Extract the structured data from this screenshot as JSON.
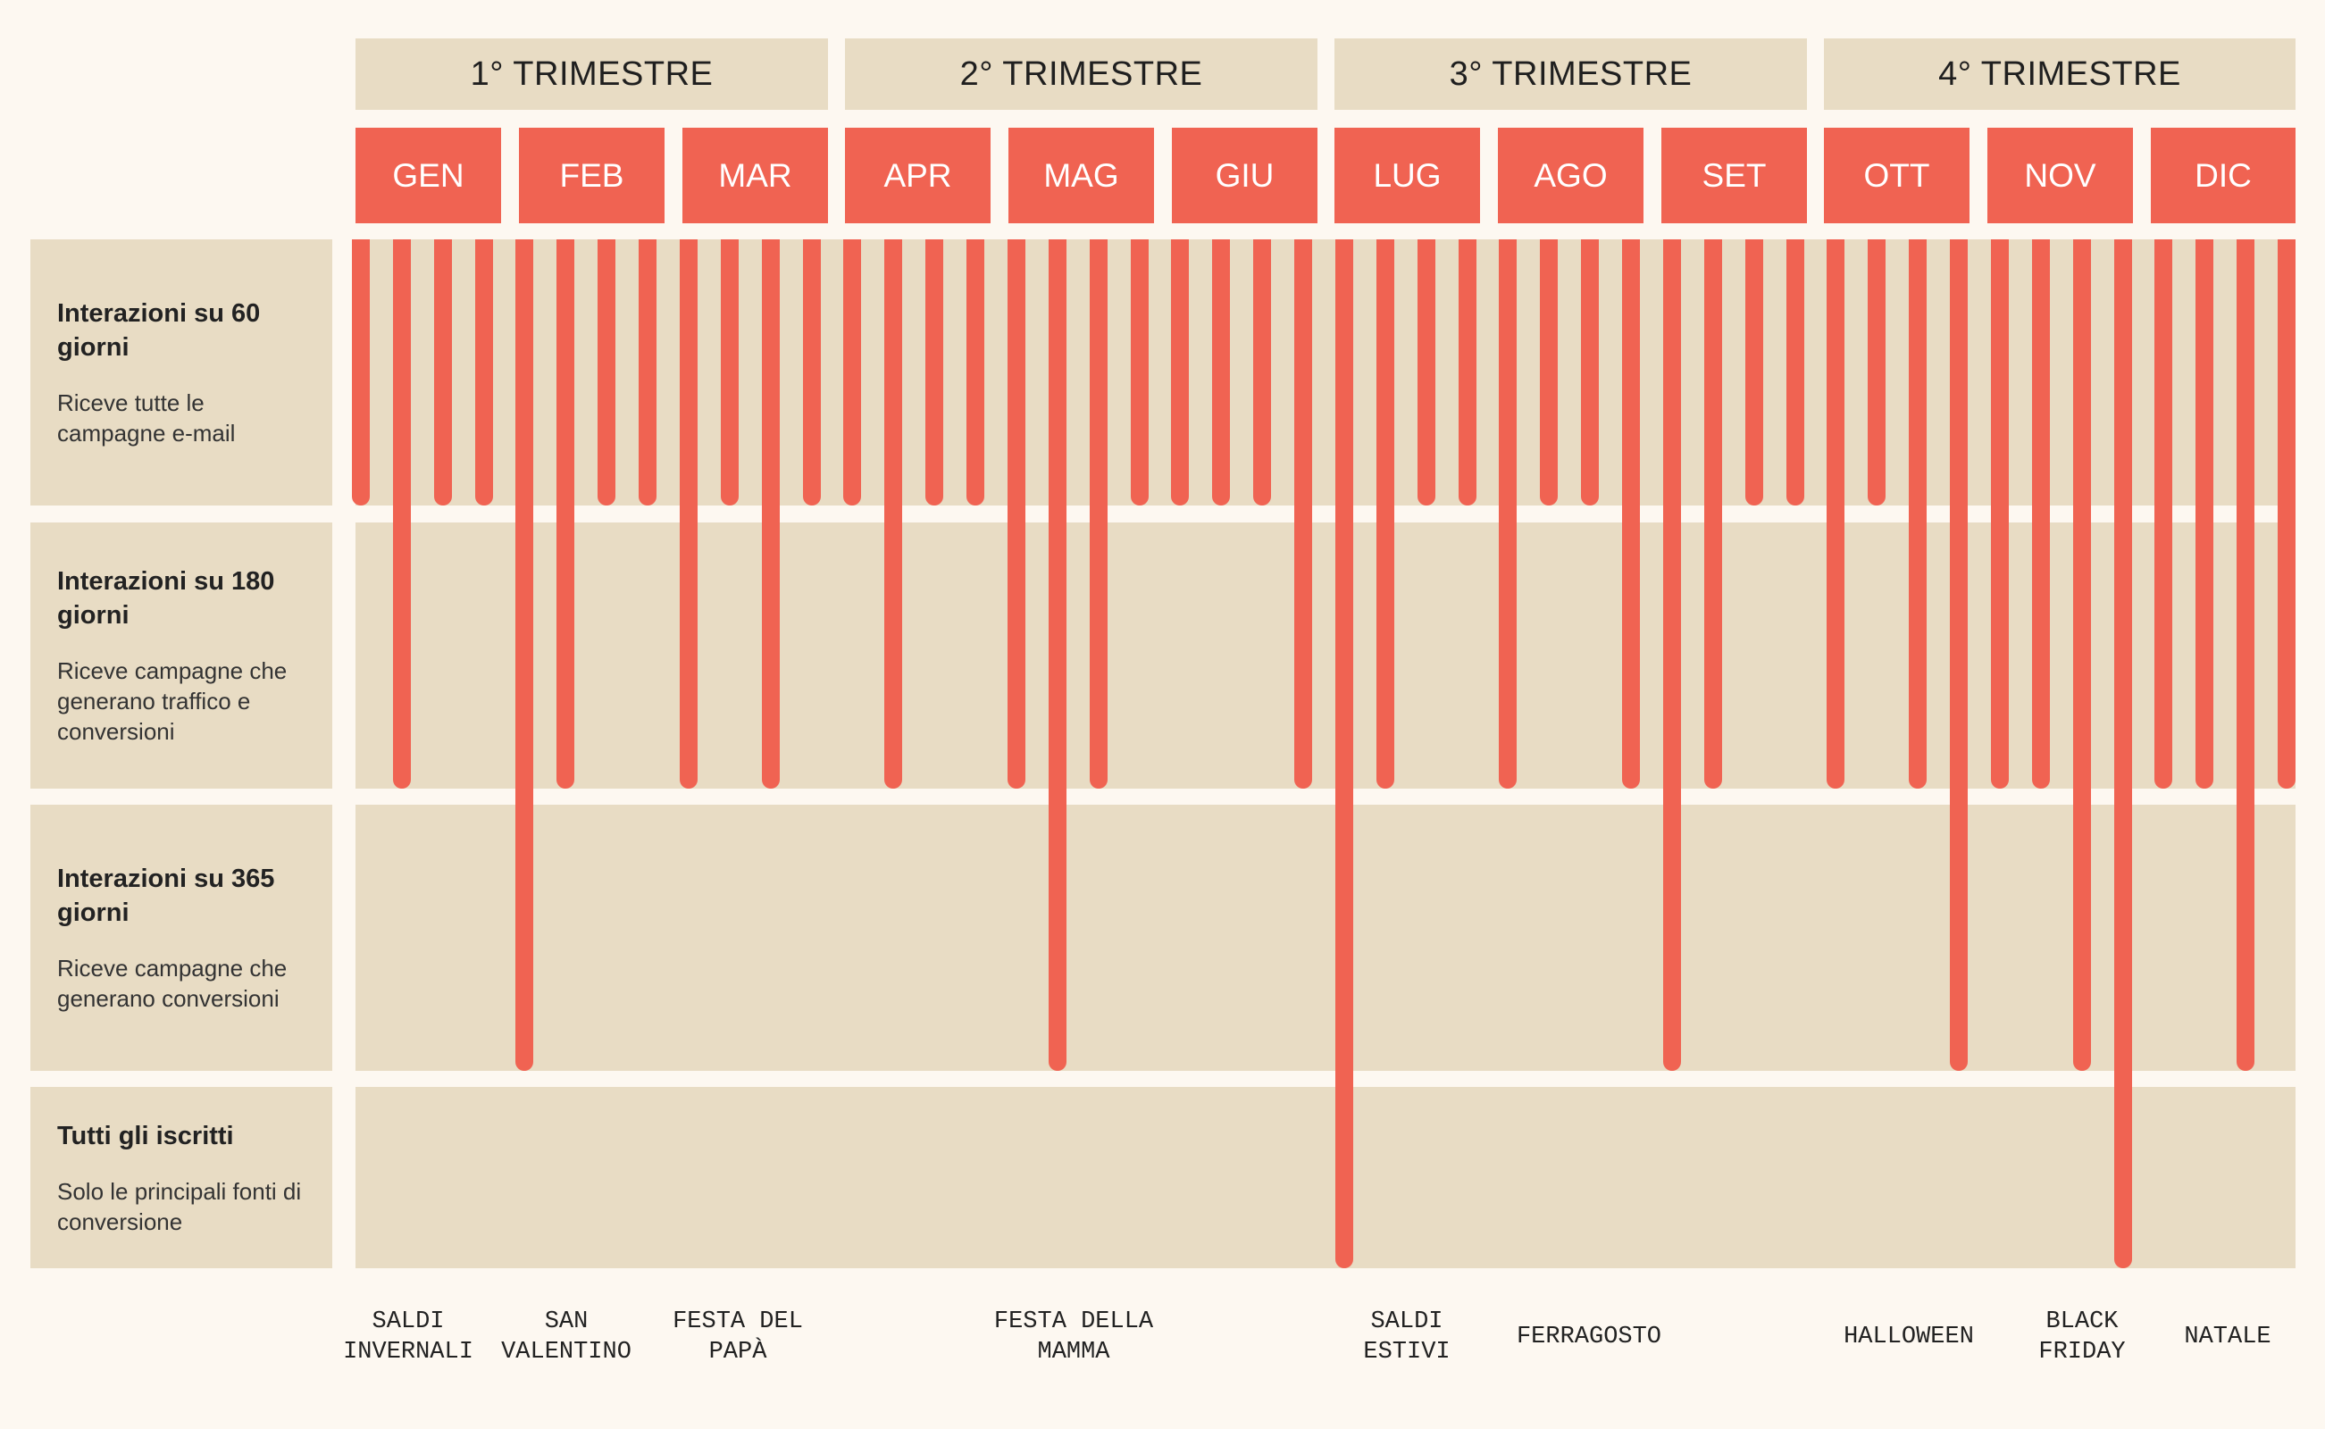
{
  "quarters": [
    "1° TRIMESTRE",
    "2° TRIMESTRE",
    "3° TRIMESTRE",
    "4° TRIMESTRE"
  ],
  "months": [
    "GEN",
    "FEB",
    "MAR",
    "APR",
    "MAG",
    "GIU",
    "LUG",
    "AGO",
    "SET",
    "OTT",
    "NOV",
    "DIC"
  ],
  "segments": [
    {
      "title": "Interazioni su 60 giorni",
      "description": "Riceve tutte le campagne e-mail"
    },
    {
      "title": "Interazioni su 180 giorni",
      "description": "Riceve campagne che generano traffico e conversioni"
    },
    {
      "title": "Interazioni su 365 giorni",
      "description": "Riceve campagne che generano conversioni"
    },
    {
      "title": "Tutti gli iscritti",
      "description": "Solo le principali fonti di conversione"
    }
  ],
  "campaign_reach": [
    1,
    2,
    1,
    1,
    3,
    2,
    1,
    1,
    2,
    1,
    2,
    1,
    1,
    2,
    1,
    1,
    2,
    3,
    2,
    1,
    1,
    1,
    1,
    2,
    4,
    2,
    1,
    1,
    2,
    1,
    1,
    2,
    3,
    2,
    1,
    1,
    2,
    1,
    2,
    3,
    2,
    2,
    3,
    4,
    2,
    2,
    3,
    2
  ],
  "events": [
    {
      "label": "SALDI\nINVERNALI"
    },
    {
      "label": "SAN\nVALENTINO"
    },
    {
      "label": "FESTA DEL\nPAPÀ"
    },
    {
      "label": "FESTA DELLA\nMAMMA"
    },
    {
      "label": "SALDI\nESTIVI"
    },
    {
      "label": "FERRAGOSTO"
    },
    {
      "label": "HALLOWEEN"
    },
    {
      "label": "BLACK\nFRIDAY"
    },
    {
      "label": "NATALE"
    }
  ],
  "colors": {
    "accent": "#f06352",
    "panel": "#e8dcc4",
    "background": "#fdf8f1"
  }
}
